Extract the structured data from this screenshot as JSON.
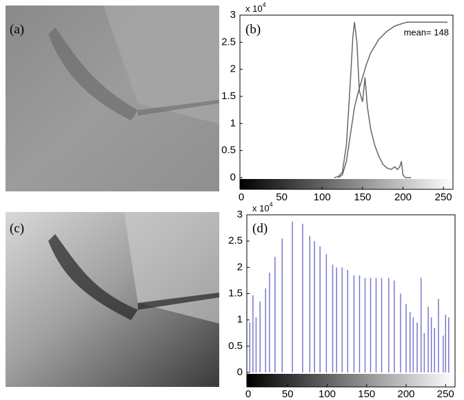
{
  "panel_labels": [
    "(a)",
    "(b)",
    "(c)",
    "(d)"
  ],
  "chart_data": [
    {
      "type": "line",
      "annotation": "mean= 148",
      "multiplier": {
        "base": "x 10",
        "exponent": "4"
      },
      "series": [
        {
          "color": "#666666",
          "x": [
            115,
            120,
            125,
            130,
            135,
            138,
            140,
            143,
            146,
            150,
            153,
            156,
            160,
            165,
            170,
            175,
            180,
            185,
            190,
            193,
            196,
            198,
            200,
            203,
            210
          ],
          "values": [
            0,
            0.02,
            0.1,
            0.6,
            1.8,
            2.6,
            2.87,
            2.5,
            1.6,
            1.4,
            1.85,
            1.3,
            0.9,
            0.6,
            0.4,
            0.25,
            0.18,
            0.15,
            0.2,
            0.15,
            0.2,
            0.3,
            0.05,
            0,
            0
          ]
        },
        {
          "color": "#666666",
          "x": [
            120,
            125,
            130,
            135,
            140,
            145,
            150,
            155,
            160,
            170,
            180,
            190,
            200,
            205,
            255
          ],
          "values": [
            0,
            0.05,
            0.3,
            0.8,
            1.3,
            1.6,
            1.85,
            2.1,
            2.3,
            2.55,
            2.7,
            2.8,
            2.85,
            2.87,
            2.87
          ]
        }
      ],
      "xlim": [
        0,
        255
      ],
      "ylim": [
        0,
        3
      ],
      "xticks": [
        0,
        50,
        100,
        150,
        200,
        250
      ],
      "yticks": [
        0,
        0.5,
        1,
        1.5,
        2,
        2.5,
        3
      ]
    },
    {
      "type": "bar",
      "multiplier": {
        "base": "x 10",
        "exponent": "4"
      },
      "color": "#7777cc",
      "x": [
        2,
        6,
        10,
        15,
        22,
        27,
        34,
        43,
        56,
        69,
        78,
        84,
        91,
        99,
        107,
        112,
        119,
        126,
        134,
        141,
        148,
        155,
        162,
        169,
        178,
        185,
        193,
        200,
        205,
        209,
        214,
        219,
        223,
        228,
        232,
        236,
        241,
        247,
        250,
        254
      ],
      "values": [
        0.95,
        1.47,
        1.05,
        1.35,
        1.6,
        1.9,
        2.2,
        2.55,
        2.87,
        2.83,
        2.6,
        2.5,
        2.4,
        2.25,
        2.05,
        2.0,
        2.0,
        1.95,
        1.85,
        1.85,
        1.8,
        1.8,
        1.8,
        1.8,
        1.8,
        1.75,
        1.5,
        1.3,
        1.15,
        1.05,
        0.95,
        1.8,
        0.75,
        1.25,
        1.05,
        0.85,
        1.4,
        0.7,
        1.1,
        1.05
      ],
      "xlim": [
        0,
        255
      ],
      "ylim": [
        0,
        3
      ],
      "xticks": [
        0,
        50,
        100,
        150,
        200,
        250
      ],
      "yticks": [
        0,
        0.5,
        1,
        1.5,
        2,
        2.5,
        3
      ]
    }
  ]
}
